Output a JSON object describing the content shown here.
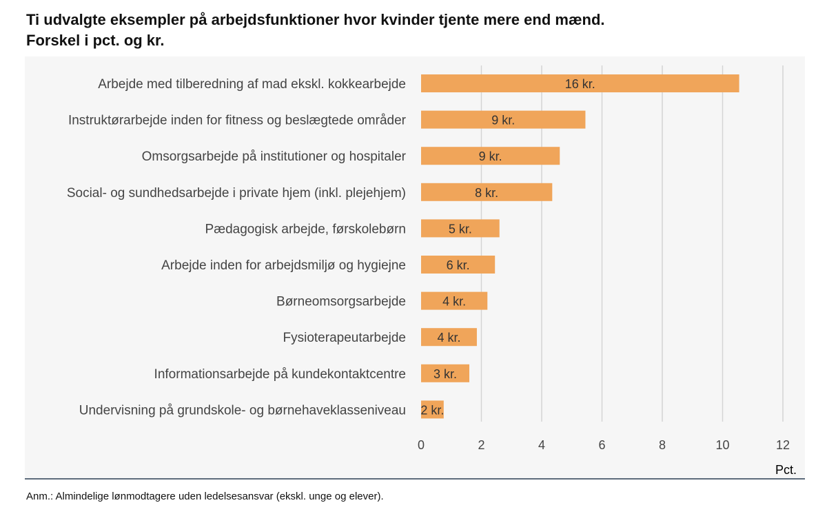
{
  "title_line1": "Ti udvalgte eksempler på arbejdsfunktioner hvor kvinder tjente mere end mænd.",
  "title_line2": "Forskel i pct. og kr.",
  "note": "Anm.: Almindelige lønmodtagere uden ledelsesansvar (ekskl. unge og elever).",
  "colors": {
    "bar": "#f0a55a",
    "grid": "#d4d4d4",
    "background": "#f6f6f6",
    "rule": "#5d6b7b"
  },
  "chart_data": {
    "type": "bar",
    "orientation": "horizontal",
    "categories": [
      "Arbejde med tilberedning af mad ekskl. kokkearbejde",
      "Instruktørarbejde inden for fitness og beslægtede områder",
      "Omsorgsarbejde på institutioner og hospitaler",
      "Social- og sundhedsarbejde i private hjem (inkl. plejehjem)",
      "Pædagogisk arbejde, førskolebørn",
      "Arbejde inden for arbejdsmiljø og hygiejne",
      "Børneomsorgsarbejde",
      "Fysioterapeutarbejde",
      "Informationsarbejde på kundekontaktcentre",
      "Undervisning på grundskole- og børnehaveklasseniveau"
    ],
    "values": [
      10.55,
      5.45,
      4.6,
      4.35,
      2.6,
      2.45,
      2.2,
      1.85,
      1.6,
      0.75
    ],
    "data_labels": [
      "16 kr.",
      "9 kr.",
      "9 kr.",
      "8 kr.",
      "5 kr.",
      "6 kr.",
      "4 kr.",
      "4 kr.",
      "3 kr.",
      "2 kr."
    ],
    "xlim": [
      0,
      12
    ],
    "xticks": [
      "0",
      "2",
      "4",
      "6",
      "8",
      "10",
      "12"
    ],
    "xlabel": "Pct.",
    "grid": "vertical"
  }
}
